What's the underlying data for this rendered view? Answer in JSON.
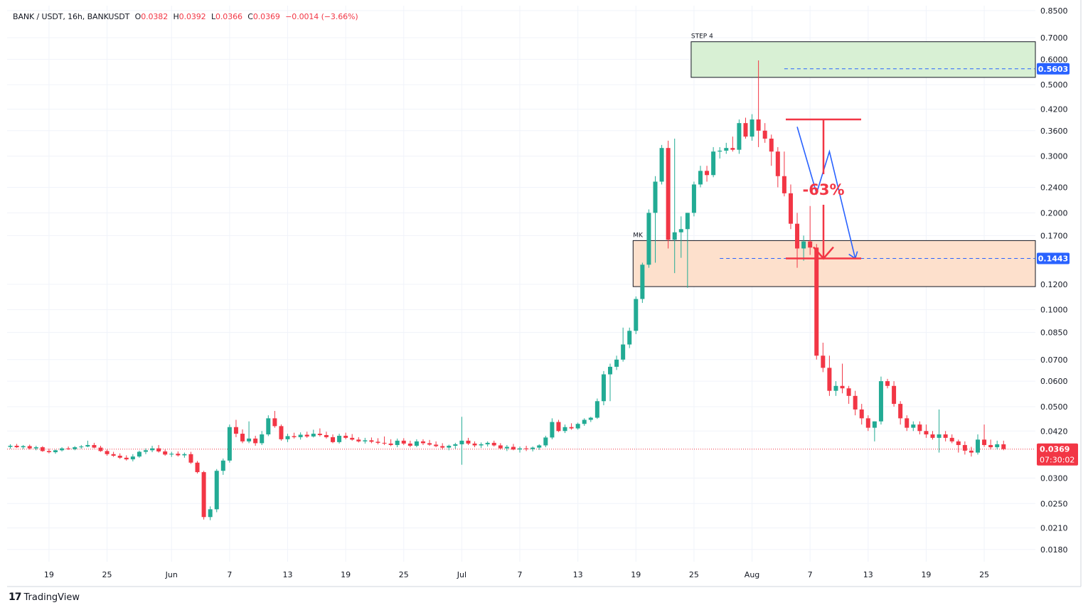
{
  "header": {
    "symbol": "BANK / USDT, 16h, BANKUSDT",
    "o_label": "O",
    "o_value": "0.0382",
    "h_label": "H",
    "h_value": "0.0392",
    "l_label": "L",
    "l_value": "0.0366",
    "c_label": "C",
    "c_value": "0.0369",
    "change": "−0.0014 (−3.66%)"
  },
  "branding": {
    "logo_mark": "17",
    "logo_text": "TradingView"
  },
  "colors": {
    "up": "#22ab94",
    "down": "#f23645",
    "grid": "#f0f3fa",
    "annotation": "#f23645",
    "path": "#2962ff"
  },
  "chart_data": {
    "type": "candlestick",
    "title": "",
    "scale": "log",
    "ylim": [
      0.0165,
      0.88
    ],
    "y_ticks": [
      "0.8500",
      "0.7000",
      "0.6000",
      "0.5000",
      "0.4200",
      "0.3600",
      "0.3000",
      "0.2400",
      "0.2000",
      "0.1700",
      "0.1443",
      "0.1200",
      "0.1000",
      "0.0850",
      "0.0700",
      "0.0600",
      "0.0500",
      "0.0420",
      "0.0369",
      "0.0300",
      "0.0250",
      "0.0210",
      "0.0180"
    ],
    "x_ticks": [
      {
        "label": "19",
        "index": 6
      },
      {
        "label": "25",
        "index": 15
      },
      {
        "label": "Jun",
        "index": 25
      },
      {
        "label": "7",
        "index": 34
      },
      {
        "label": "13",
        "index": 43
      },
      {
        "label": "19",
        "index": 52
      },
      {
        "label": "25",
        "index": 61
      },
      {
        "label": "Jul",
        "index": 70
      },
      {
        "label": "7",
        "index": 79
      },
      {
        "label": "13",
        "index": 88
      },
      {
        "label": "19",
        "index": 97
      },
      {
        "label": "25",
        "index": 106
      },
      {
        "label": "Aug",
        "index": 115
      },
      {
        "label": "7",
        "index": 124
      },
      {
        "label": "13",
        "index": 133
      },
      {
        "label": "19",
        "index": 142
      },
      {
        "label": "25",
        "index": 151
      }
    ],
    "candles": [
      [
        0.0375,
        0.0382,
        0.037,
        0.0378
      ],
      [
        0.0378,
        0.0383,
        0.0372,
        0.0374
      ],
      [
        0.0374,
        0.038,
        0.0369,
        0.0377
      ],
      [
        0.0377,
        0.0381,
        0.0368,
        0.0371
      ],
      [
        0.0371,
        0.0378,
        0.0366,
        0.0374
      ],
      [
        0.0374,
        0.0377,
        0.0362,
        0.0364
      ],
      [
        0.0364,
        0.037,
        0.0358,
        0.0361
      ],
      [
        0.0361,
        0.0368,
        0.0357,
        0.0366
      ],
      [
        0.0366,
        0.0374,
        0.0363,
        0.0371
      ],
      [
        0.0371,
        0.0376,
        0.0367,
        0.0369
      ],
      [
        0.0369,
        0.0377,
        0.0366,
        0.0374
      ],
      [
        0.0374,
        0.038,
        0.037,
        0.0376
      ],
      [
        0.0376,
        0.0392,
        0.0374,
        0.038
      ],
      [
        0.038,
        0.0386,
        0.0371,
        0.0373
      ],
      [
        0.0373,
        0.0378,
        0.0362,
        0.0364
      ],
      [
        0.0364,
        0.0368,
        0.0352,
        0.0356
      ],
      [
        0.0356,
        0.0362,
        0.0349,
        0.0352
      ],
      [
        0.0352,
        0.0358,
        0.0344,
        0.0347
      ],
      [
        0.0347,
        0.0353,
        0.034,
        0.0343
      ],
      [
        0.0343,
        0.0356,
        0.0338,
        0.035
      ],
      [
        0.035,
        0.0365,
        0.0347,
        0.0362
      ],
      [
        0.0362,
        0.0371,
        0.0356,
        0.0366
      ],
      [
        0.0366,
        0.0378,
        0.0361,
        0.0371
      ],
      [
        0.0371,
        0.038,
        0.036,
        0.0363
      ],
      [
        0.0363,
        0.0368,
        0.0352,
        0.0355
      ],
      [
        0.0355,
        0.0362,
        0.0349,
        0.0357
      ],
      [
        0.0357,
        0.0363,
        0.035,
        0.0353
      ],
      [
        0.0353,
        0.036,
        0.0347,
        0.0356
      ],
      [
        0.0356,
        0.0362,
        0.0332,
        0.0335
      ],
      [
        0.0335,
        0.0339,
        0.031,
        0.0313
      ],
      [
        0.0313,
        0.0316,
        0.0223,
        0.0227
      ],
      [
        0.0227,
        0.0245,
        0.0222,
        0.024
      ],
      [
        0.024,
        0.032,
        0.0235,
        0.0316
      ],
      [
        0.0316,
        0.0345,
        0.0307,
        0.034
      ],
      [
        0.034,
        0.044,
        0.0335,
        0.0432
      ],
      [
        0.0432,
        0.0455,
        0.0402,
        0.0412
      ],
      [
        0.0412,
        0.0425,
        0.0385,
        0.039
      ],
      [
        0.039,
        0.045,
        0.0385,
        0.0398
      ],
      [
        0.0398,
        0.0406,
        0.0378,
        0.0385
      ],
      [
        0.0385,
        0.042,
        0.038,
        0.041
      ],
      [
        0.041,
        0.047,
        0.0405,
        0.046
      ],
      [
        0.046,
        0.0485,
        0.043,
        0.0435
      ],
      [
        0.0435,
        0.044,
        0.0392,
        0.0396
      ],
      [
        0.0396,
        0.0412,
        0.0388,
        0.0405
      ],
      [
        0.0405,
        0.0415,
        0.0398,
        0.0402
      ],
      [
        0.0402,
        0.0416,
        0.0395,
        0.0409
      ],
      [
        0.0409,
        0.0418,
        0.04,
        0.0404
      ],
      [
        0.0404,
        0.0424,
        0.0401,
        0.0412
      ],
      [
        0.0412,
        0.0428,
        0.0404,
        0.0408
      ],
      [
        0.0408,
        0.0418,
        0.0398,
        0.0402
      ],
      [
        0.0402,
        0.041,
        0.0385,
        0.0388
      ],
      [
        0.0388,
        0.0412,
        0.0384,
        0.0406
      ],
      [
        0.0406,
        0.0415,
        0.0396,
        0.04
      ],
      [
        0.04,
        0.0411,
        0.0392,
        0.0395
      ],
      [
        0.0395,
        0.0402,
        0.0387,
        0.039
      ],
      [
        0.039,
        0.04,
        0.0384,
        0.0393
      ],
      [
        0.0393,
        0.0401,
        0.0385,
        0.0389
      ],
      [
        0.0389,
        0.0399,
        0.0382,
        0.0386
      ],
      [
        0.0386,
        0.0404,
        0.038,
        0.0384
      ],
      [
        0.0384,
        0.0396,
        0.0377,
        0.038
      ],
      [
        0.038,
        0.0398,
        0.0374,
        0.0392
      ],
      [
        0.0392,
        0.0399,
        0.038,
        0.0384
      ],
      [
        0.0384,
        0.0392,
        0.0374,
        0.0378
      ],
      [
        0.0378,
        0.0396,
        0.0374,
        0.039
      ],
      [
        0.039,
        0.0396,
        0.038,
        0.0385
      ],
      [
        0.0385,
        0.0394,
        0.0378,
        0.0381
      ],
      [
        0.0381,
        0.039,
        0.0374,
        0.0377
      ],
      [
        0.0377,
        0.0385,
        0.0368,
        0.0373
      ],
      [
        0.0373,
        0.0381,
        0.0366,
        0.0378
      ],
      [
        0.0378,
        0.0386,
        0.037,
        0.0382
      ],
      [
        0.0382,
        0.0465,
        0.033,
        0.0392
      ],
      [
        0.0392,
        0.04,
        0.038,
        0.0384
      ],
      [
        0.0384,
        0.039,
        0.0374,
        0.0379
      ],
      [
        0.0379,
        0.0387,
        0.0372,
        0.0382
      ],
      [
        0.0382,
        0.039,
        0.0376,
        0.0386
      ],
      [
        0.0386,
        0.0392,
        0.0376,
        0.0379
      ],
      [
        0.0379,
        0.0385,
        0.0368,
        0.0371
      ],
      [
        0.0371,
        0.038,
        0.0364,
        0.0375
      ],
      [
        0.0375,
        0.0383,
        0.0366,
        0.0368
      ],
      [
        0.0368,
        0.0376,
        0.036,
        0.0371
      ],
      [
        0.0371,
        0.0378,
        0.0364,
        0.0369
      ],
      [
        0.0369,
        0.0376,
        0.0363,
        0.0373
      ],
      [
        0.0373,
        0.0382,
        0.0367,
        0.0379
      ],
      [
        0.0379,
        0.0406,
        0.0374,
        0.0401
      ],
      [
        0.0401,
        0.046,
        0.0396,
        0.0448
      ],
      [
        0.0448,
        0.0455,
        0.0417,
        0.042
      ],
      [
        0.042,
        0.044,
        0.0414,
        0.0432
      ],
      [
        0.0432,
        0.0444,
        0.0424,
        0.0428
      ],
      [
        0.0428,
        0.0446,
        0.0424,
        0.0442
      ],
      [
        0.0442,
        0.046,
        0.0436,
        0.0455
      ],
      [
        0.0455,
        0.0465,
        0.0448,
        0.0462
      ],
      [
        0.0462,
        0.053,
        0.0458,
        0.052
      ],
      [
        0.052,
        0.0645,
        0.0505,
        0.063
      ],
      [
        0.063,
        0.068,
        0.052,
        0.0665
      ],
      [
        0.0665,
        0.072,
        0.065,
        0.07
      ],
      [
        0.07,
        0.088,
        0.069,
        0.078
      ],
      [
        0.078,
        0.088,
        0.076,
        0.086
      ],
      [
        0.086,
        0.11,
        0.084,
        0.108
      ],
      [
        0.108,
        0.14,
        0.105,
        0.138
      ],
      [
        0.138,
        0.205,
        0.135,
        0.2
      ],
      [
        0.2,
        0.26,
        0.14,
        0.25
      ],
      [
        0.25,
        0.325,
        0.245,
        0.318
      ],
      [
        0.318,
        0.335,
        0.155,
        0.165
      ],
      [
        0.165,
        0.34,
        0.13,
        0.174
      ],
      [
        0.174,
        0.195,
        0.145,
        0.178
      ],
      [
        0.178,
        0.2,
        0.117,
        0.2
      ],
      [
        0.2,
        0.25,
        0.195,
        0.245
      ],
      [
        0.245,
        0.28,
        0.24,
        0.27
      ],
      [
        0.27,
        0.28,
        0.25,
        0.262
      ],
      [
        0.262,
        0.32,
        0.258,
        0.31
      ],
      [
        0.31,
        0.32,
        0.295,
        0.312
      ],
      [
        0.312,
        0.33,
        0.305,
        0.318
      ],
      [
        0.318,
        0.345,
        0.31,
        0.314
      ],
      [
        0.314,
        0.39,
        0.305,
        0.38
      ],
      [
        0.38,
        0.395,
        0.34,
        0.345
      ],
      [
        0.345,
        0.405,
        0.335,
        0.39
      ],
      [
        0.39,
        0.595,
        0.32,
        0.36
      ],
      [
        0.36,
        0.38,
        0.33,
        0.34
      ],
      [
        0.34,
        0.35,
        0.28,
        0.31
      ],
      [
        0.31,
        0.32,
        0.24,
        0.26
      ],
      [
        0.26,
        0.31,
        0.225,
        0.23
      ],
      [
        0.23,
        0.245,
        0.178,
        0.185
      ],
      [
        0.185,
        0.2,
        0.135,
        0.155
      ],
      [
        0.155,
        0.17,
        0.142,
        0.163
      ],
      [
        0.163,
        0.21,
        0.148,
        0.156
      ],
      [
        0.156,
        0.16,
        0.07,
        0.072
      ],
      [
        0.072,
        0.079,
        0.064,
        0.066
      ],
      [
        0.066,
        0.072,
        0.054,
        0.056
      ],
      [
        0.056,
        0.06,
        0.054,
        0.058
      ],
      [
        0.058,
        0.068,
        0.055,
        0.057
      ],
      [
        0.057,
        0.058,
        0.051,
        0.054
      ],
      [
        0.054,
        0.056,
        0.047,
        0.049
      ],
      [
        0.049,
        0.051,
        0.044,
        0.046
      ],
      [
        0.046,
        0.047,
        0.042,
        0.043
      ],
      [
        0.043,
        0.045,
        0.039,
        0.045
      ],
      [
        0.045,
        0.062,
        0.044,
        0.06
      ],
      [
        0.06,
        0.061,
        0.057,
        0.058
      ],
      [
        0.058,
        0.06,
        0.05,
        0.051
      ],
      [
        0.051,
        0.052,
        0.044,
        0.046
      ],
      [
        0.046,
        0.047,
        0.042,
        0.043
      ],
      [
        0.043,
        0.045,
        0.042,
        0.044
      ],
      [
        0.044,
        0.045,
        0.041,
        0.042
      ],
      [
        0.042,
        0.044,
        0.04,
        0.041
      ],
      [
        0.041,
        0.042,
        0.0395,
        0.04
      ],
      [
        0.04,
        0.049,
        0.036,
        0.041
      ],
      [
        0.041,
        0.042,
        0.039,
        0.04
      ],
      [
        0.04,
        0.041,
        0.0385,
        0.039
      ],
      [
        0.039,
        0.0395,
        0.036,
        0.038
      ],
      [
        0.038,
        0.039,
        0.0355,
        0.0365
      ],
      [
        0.0365,
        0.0375,
        0.035,
        0.036
      ],
      [
        0.036,
        0.041,
        0.0355,
        0.0395
      ],
      [
        0.0395,
        0.044,
        0.0375,
        0.038
      ],
      [
        0.038,
        0.0395,
        0.0368,
        0.0374
      ],
      [
        0.0374,
        0.0392,
        0.0368,
        0.0382
      ],
      [
        0.0382,
        0.0392,
        0.0366,
        0.0369
      ]
    ],
    "zones": [
      {
        "label": "STEP 4",
        "from_index": 106,
        "to_index": 177,
        "top": 0.68,
        "bottom": 0.527,
        "color": "#d8f0d4"
      },
      {
        "label": "MK",
        "from_index": 97,
        "to_index": 177,
        "top": 0.164,
        "bottom": 0.118,
        "color": "#fde0cc"
      }
    ],
    "levels": [
      {
        "value": 0.5603,
        "label": "0.5603",
        "color": "#2962ff",
        "from_index": 120
      },
      {
        "value": 0.1443,
        "label": "0.1443",
        "color": "#2962ff",
        "from_index": 110
      },
      {
        "value": 0.0369,
        "label": "0.0369",
        "color": "#f23645",
        "from_index": 0
      }
    ],
    "last_price": {
      "value": 0.0369,
      "label": "0.0369",
      "countdown": "07:30:02"
    },
    "annotation": {
      "label": "-63%",
      "from_value": 0.39,
      "to_value": 0.1443
    },
    "projection": [
      {
        "index": 122,
        "value": 0.37
      },
      {
        "index": 125,
        "value": 0.23
      },
      {
        "index": 127,
        "value": 0.31
      },
      {
        "index": 131,
        "value": 0.1443
      }
    ]
  }
}
